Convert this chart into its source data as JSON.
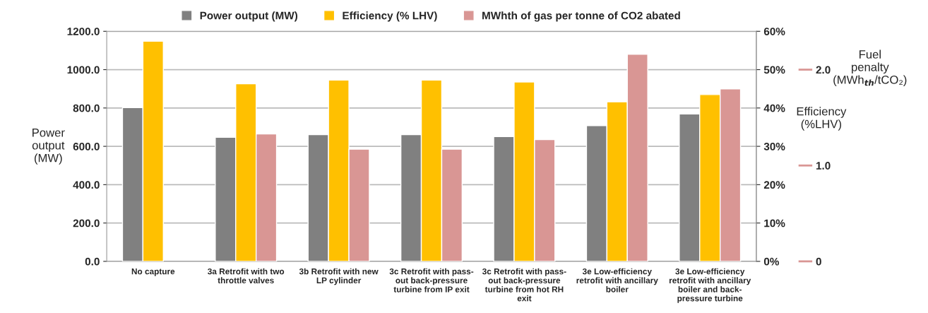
{
  "chart_data": {
    "type": "bar",
    "categories": [
      "No capture",
      "3a Retrofit with two\nthrottle valves",
      "3b Retrofit with new\nLP cylinder",
      "3c Retrofit with pass-\nout back-pressure\nturbine from IP exit",
      "3c Retrofit with pass-\nout back-pressure\nturbine from hot RH\nexit",
      "3e Low-efficiency\nretrofit with ancillary\nboiler",
      "3e Low-efficiency\nretrofit with ancillary\nboiler and back-\npressure turbine"
    ],
    "series": [
      {
        "name": "Power output (MW)",
        "color": "#808080",
        "values": [
          802,
          647,
          661,
          661,
          651,
          708,
          769
        ]
      },
      {
        "name": "Efficiency (% LHV)",
        "color": "#ffc000",
        "axis": "y2",
        "values": [
          57.4,
          46.3,
          47.3,
          47.3,
          46.8,
          41.6,
          43.5
        ]
      },
      {
        "name": "MWhth of gas per tonne of CO2 abated",
        "color": "#d99694",
        "axis": "y3",
        "values": [
          null,
          1.33,
          1.17,
          1.17,
          1.27,
          2.16,
          1.8
        ]
      }
    ],
    "ylabel": "Power\noutput\n(MW)",
    "y2label": "Efficiency\n(%LHV)",
    "y3label": "Fuel\npenalty\n(MWh$_{th}$/tCO₂)",
    "ylim": [
      0,
      1200
    ],
    "yticks": [
      {
        "value": 0,
        "label": "0.0"
      },
      {
        "value": 200,
        "label": "200.0"
      },
      {
        "value": 400,
        "label": "400.0"
      },
      {
        "value": 600,
        "label": "600.0"
      },
      {
        "value": 800,
        "label": "800.0"
      },
      {
        "value": 1000,
        "label": "1000.0"
      },
      {
        "value": 1200,
        "label": "1200.0"
      }
    ],
    "y2lim": [
      0,
      60
    ],
    "y2ticks": [
      {
        "value": 0,
        "label": "0%"
      },
      {
        "value": 10,
        "label": "10%"
      },
      {
        "value": 20,
        "label": "20%"
      },
      {
        "value": 30,
        "label": "30%"
      },
      {
        "value": 40,
        "label": "40%"
      },
      {
        "value": 50,
        "label": "50%"
      },
      {
        "value": 60,
        "label": "60%"
      }
    ],
    "y3lim": [
      0,
      2.4
    ],
    "y3ticks": [
      0,
      {
        "value": 1,
        "label": "1.0"
      },
      {
        "value": 2,
        "label": "2.0"
      }
    ],
    "grid": "y",
    "legend": "top"
  }
}
